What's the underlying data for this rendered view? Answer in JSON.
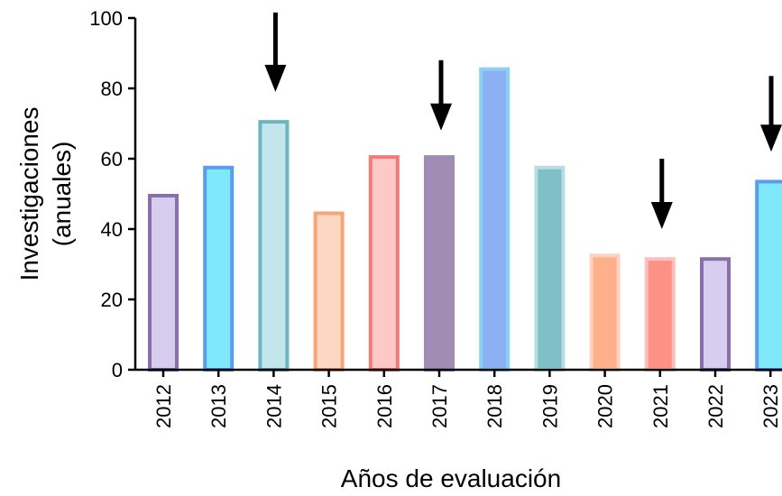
{
  "chart_data": {
    "type": "bar",
    "title": "",
    "xlabel": "Años de evaluación",
    "ylabel": [
      "Investigaciones",
      "(anuales)"
    ],
    "ylim": [
      0,
      100
    ],
    "yticks": [
      0,
      20,
      40,
      60,
      80,
      100
    ],
    "categories": [
      "2012",
      "2013",
      "2014",
      "2015",
      "2016",
      "2017",
      "2018",
      "2019",
      "2020",
      "2021",
      "2022",
      "2023"
    ],
    "values": [
      50,
      58,
      71,
      45,
      61,
      61,
      86,
      58,
      33,
      32,
      32,
      54
    ],
    "bar_fill_colors": [
      "#d7cdee",
      "#80e8fb",
      "#c3e6ec",
      "#fed7c3",
      "#fec8c8",
      "#a08cb5",
      "#8cb0f4",
      "#7fbfc6",
      "#feb08a",
      "#fe9184",
      "#d7cdee",
      "#80e8fb"
    ],
    "bar_stroke_colors": [
      "#8870aa",
      "#5b9cf0",
      "#6cb5bc",
      "#f6a578",
      "#f57b78",
      "#a08cb5",
      "#8cd0f4",
      "#b7dde3",
      "#fed2c0",
      "#fec0bc",
      "#8870aa",
      "#5b9cf0"
    ],
    "arrows_at": [
      "2014",
      "2017",
      "2021",
      "2023"
    ],
    "grid": false,
    "legend": "none"
  }
}
